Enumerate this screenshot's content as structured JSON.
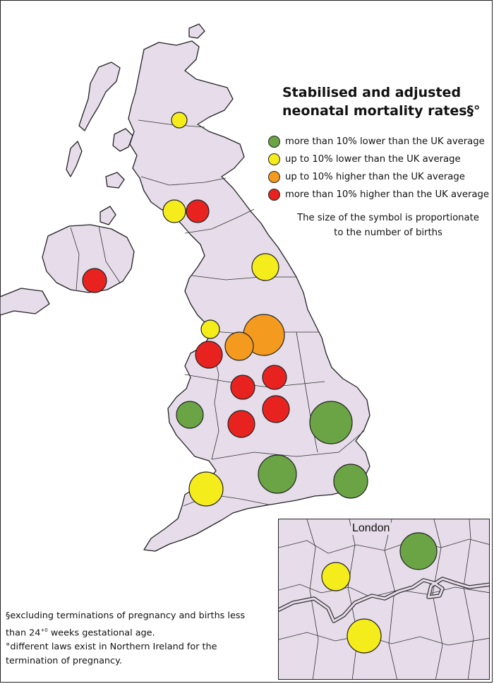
{
  "title": {
    "line1": "Stabilised and adjusted",
    "line2": "neonatal mortality rates§°"
  },
  "legend": {
    "items": [
      {
        "key": "green",
        "label": "more than 10% lower than the UK average",
        "color": "#6aa444"
      },
      {
        "key": "yellow",
        "label": "up to 10% lower than the UK average",
        "color": "#f5ec1c"
      },
      {
        "key": "orange",
        "label": "up to 10% higher than the UK average",
        "color": "#f39a1f"
      },
      {
        "key": "red",
        "label": "more than 10% higher than the UK average",
        "color": "#e8231f"
      }
    ],
    "size_note_line1": "The size of the symbol is proportionate",
    "size_note_line2": "to the number of births"
  },
  "inset": {
    "label": "London"
  },
  "footnotes": {
    "line1": "§excluding terminations of pregnancy and births less",
    "line2a": "than 24",
    "line2sup": "+0",
    "line2b": " weeks gestational age.",
    "line3": "°different laws exist in Northern Ireland for the",
    "line4": "termination of pregnancy."
  },
  "map_colors": {
    "land": "#e6dcea",
    "outline": "#222222"
  }
}
